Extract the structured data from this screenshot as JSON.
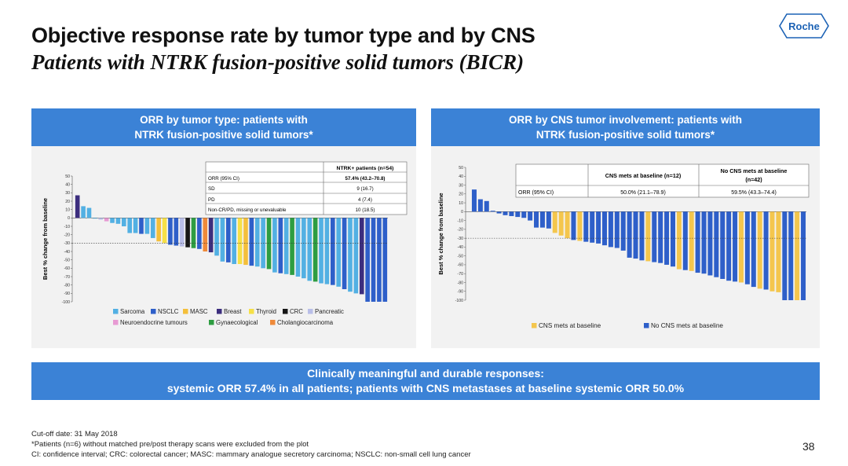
{
  "header": {
    "title": "Objective response rate by tumor type and by CNS",
    "subtitle": "Patients with NTRK fusion-positive solid tumors (BICR)",
    "logo_text": "Roche"
  },
  "left_panel": {
    "heading_line1": "ORR by tumor type: patients with",
    "heading_line2": "NTRK fusion-positive solid tumors*",
    "table": {
      "header": "NTRK+ patients (n=54)",
      "rows": [
        {
          "label": "ORR (95% CI)",
          "value": "57.4% (43.2–70.8)"
        },
        {
          "label": "SD",
          "value": "9 (16.7)"
        },
        {
          "label": "PD",
          "value": "4 (7.4)"
        },
        {
          "label": "Non-CR/PD, missing or unevaluable",
          "value": "10 (18.5)"
        }
      ]
    }
  },
  "right_panel": {
    "heading_line1": "ORR by CNS tumor involvement: patients with",
    "heading_line2": "NTRK fusion-positive solid tumors*",
    "table": {
      "col1": "CNS mets at baseline (n=12)",
      "col2_line1": "No CNS mets at baseline",
      "col2_line2": "(n=42)",
      "row_label": "ORR (95% CI)",
      "col1_value": "50.0% (21.1–78.9)",
      "col2_value": "59.5% (43.3–74.4)"
    }
  },
  "chart_data": [
    {
      "type": "bar",
      "title": "ORR by tumor type",
      "ylabel": "Best % change from baseline",
      "ylim": [
        -100,
        50
      ],
      "yticks": [
        "50",
        "40",
        "30",
        "20",
        "10",
        "0",
        "-10",
        "-20",
        "-30",
        "-40",
        "-50",
        "-60",
        "-70",
        "-80",
        "-90",
        "-100"
      ],
      "reference_line": -30,
      "legend": [
        {
          "name": "Sarcoma",
          "color": "#52b0e3"
        },
        {
          "name": "NSCLC",
          "color": "#2e5fc9"
        },
        {
          "name": "MASC",
          "color": "#f4bf3a"
        },
        {
          "name": "Breast",
          "color": "#3c2e7e"
        },
        {
          "name": "Thyroid",
          "color": "#f6e047"
        },
        {
          "name": "CRC",
          "color": "#161616"
        },
        {
          "name": "Pancreatic",
          "color": "#b9bee8"
        },
        {
          "name": "Neuroendocrine tumours",
          "color": "#e79ad3"
        },
        {
          "name": "Gynaecological",
          "color": "#2e9d42"
        },
        {
          "name": "Cholangiocarcinoma",
          "color": "#ef8a3a"
        }
      ],
      "series_values": [
        27,
        14,
        12,
        0,
        -2,
        -4,
        -6,
        -7,
        -10,
        -18,
        -18,
        -19,
        -19,
        -24,
        -28,
        -30,
        -32,
        -33,
        -34,
        -35,
        -36,
        -37,
        -40,
        -41,
        -45,
        -52,
        -53,
        -55,
        -55,
        -56,
        -57,
        -58,
        -60,
        -61,
        -65,
        -66,
        -67,
        -68,
        -70,
        -72,
        -75,
        -76,
        -78,
        -79,
        -80,
        -82,
        -85,
        -88,
        -90,
        -91,
        -100,
        -100,
        -100,
        -100
      ],
      "series_categories": [
        "Breast",
        "Sarcoma",
        "Sarcoma",
        "Sarcoma",
        "Pancreatic",
        "Neuroendocrine tumours",
        "Sarcoma",
        "Sarcoma",
        "Sarcoma",
        "Sarcoma",
        "Sarcoma",
        "NSCLC",
        "Sarcoma",
        "Sarcoma",
        "MASC",
        "Thyroid",
        "NSCLC",
        "NSCLC",
        "Pancreatic",
        "CRC",
        "Gynaecological",
        "NSCLC",
        "Cholangiocarcinoma",
        "Breast",
        "Sarcoma",
        "Sarcoma",
        "NSCLC",
        "Sarcoma",
        "Thyroid",
        "MASC",
        "NSCLC",
        "Sarcoma",
        "Sarcoma",
        "Gynaecological",
        "Sarcoma",
        "NSCLC",
        "Sarcoma",
        "Gynaecological",
        "Sarcoma",
        "Sarcoma",
        "Sarcoma",
        "Gynaecological",
        "Sarcoma",
        "Sarcoma",
        "NSCLC",
        "Sarcoma",
        "NSCLC",
        "Sarcoma",
        "Sarcoma",
        "Breast",
        "NSCLC",
        "NSCLC",
        "NSCLC",
        "NSCLC"
      ]
    },
    {
      "type": "bar",
      "title": "ORR by CNS tumor involvement",
      "ylabel": "Best % change from baseline",
      "ylim": [
        -100,
        50
      ],
      "yticks": [
        "50",
        "40",
        "30",
        "20",
        "10",
        "0",
        "-10",
        "-20",
        "-30",
        "-40",
        "-50",
        "-60",
        "-70",
        "-80",
        "-90",
        "-100"
      ],
      "reference_line": -30,
      "legend": [
        {
          "name": "CNS mets at baseline",
          "color": "#f4c64d"
        },
        {
          "name": "No CNS mets at baseline",
          "color": "#2e5fc9"
        }
      ],
      "series_values": [
        25,
        14,
        12,
        1,
        -2,
        -4,
        -5,
        -6,
        -7,
        -10,
        -18,
        -18,
        -19,
        -24,
        -27,
        -30,
        -32,
        -33,
        -34,
        -35,
        -36,
        -38,
        -40,
        -41,
        -44,
        -52,
        -53,
        -55,
        -56,
        -57,
        -58,
        -60,
        -62,
        -65,
        -66,
        -67,
        -69,
        -70,
        -72,
        -74,
        -76,
        -78,
        -79,
        -80,
        -82,
        -85,
        -87,
        -88,
        -90,
        -91,
        -100,
        -100,
        -100,
        -100
      ],
      "series_groups": [
        "No CNS mets at baseline",
        "No CNS mets at baseline",
        "No CNS mets at baseline",
        "No CNS mets at baseline",
        "No CNS mets at baseline",
        "No CNS mets at baseline",
        "No CNS mets at baseline",
        "No CNS mets at baseline",
        "No CNS mets at baseline",
        "No CNS mets at baseline",
        "No CNS mets at baseline",
        "No CNS mets at baseline",
        "No CNS mets at baseline",
        "CNS mets at baseline",
        "CNS mets at baseline",
        "CNS mets at baseline",
        "No CNS mets at baseline",
        "CNS mets at baseline",
        "No CNS mets at baseline",
        "No CNS mets at baseline",
        "No CNS mets at baseline",
        "No CNS mets at baseline",
        "No CNS mets at baseline",
        "No CNS mets at baseline",
        "No CNS mets at baseline",
        "No CNS mets at baseline",
        "No CNS mets at baseline",
        "No CNS mets at baseline",
        "CNS mets at baseline",
        "No CNS mets at baseline",
        "No CNS mets at baseline",
        "No CNS mets at baseline",
        "No CNS mets at baseline",
        "CNS mets at baseline",
        "No CNS mets at baseline",
        "CNS mets at baseline",
        "No CNS mets at baseline",
        "No CNS mets at baseline",
        "No CNS mets at baseline",
        "No CNS mets at baseline",
        "No CNS mets at baseline",
        "No CNS mets at baseline",
        "No CNS mets at baseline",
        "CNS mets at baseline",
        "No CNS mets at baseline",
        "No CNS mets at baseline",
        "CNS mets at baseline",
        "No CNS mets at baseline",
        "CNS mets at baseline",
        "CNS mets at baseline",
        "No CNS mets at baseline",
        "No CNS mets at baseline",
        "CNS mets at baseline",
        "No CNS mets at baseline"
      ]
    }
  ],
  "banner": {
    "line1": "Clinically meaningful and durable responses:",
    "line2": "systemic ORR 57.4% in all patients; patients with CNS metastases at baseline systemic ORR 50.0%"
  },
  "footnotes": [
    "Cut-off date: 31 May 2018",
    "*Patients (n=6) without matched pre/post therapy scans were excluded from the plot",
    "CI: confidence interval; CRC: colorectal cancer; MASC: mammary analogue secretory carcinoma; NSCLC: non-small cell lung cancer"
  ],
  "page_number": "38"
}
